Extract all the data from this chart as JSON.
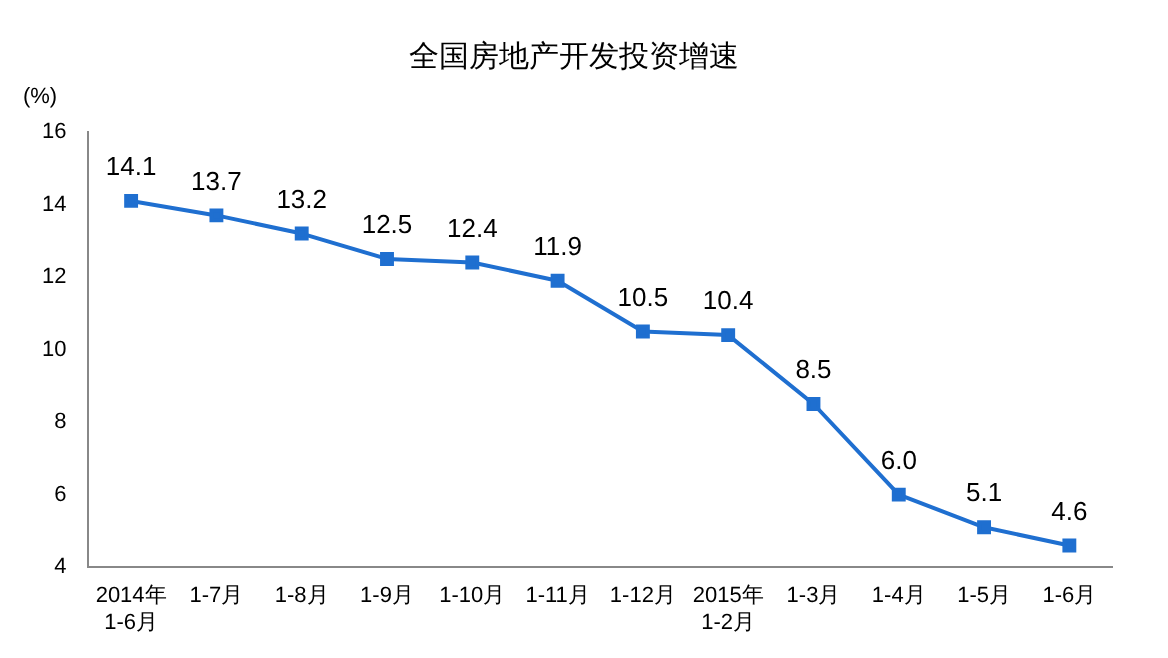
{
  "chart_data": {
    "type": "line",
    "title": "全国房地产开发投资增速",
    "ylabel": "(%)",
    "categories": [
      "2014年\n1-6月",
      "1-7月",
      "1-8月",
      "1-9月",
      "1-10月",
      "1-11月",
      "1-12月",
      "2015年\n1-2月",
      "1-3月",
      "1-4月",
      "1-5月",
      "1-6月"
    ],
    "series": [
      {
        "color": "#1f6fd0",
        "values": [
          14.1,
          13.7,
          13.2,
          12.5,
          12.4,
          11.9,
          10.5,
          10.4,
          8.5,
          6.0,
          5.1,
          4.6
        ]
      }
    ],
    "value_labels": [
      "14.1",
      "13.7",
      "13.2",
      "12.5",
      "12.4",
      "11.9",
      "10.5",
      "10.4",
      "8.5",
      "6.0",
      "5.1",
      "4.6"
    ],
    "ylim": [
      4,
      16
    ],
    "yticks": [
      4,
      6,
      8,
      10,
      12,
      14,
      16
    ],
    "marker": "square",
    "line_style": "solid",
    "grid": false,
    "legend": false
  }
}
